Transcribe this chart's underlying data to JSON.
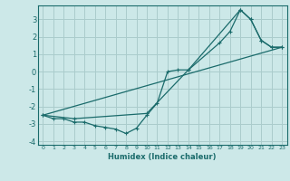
{
  "xlabel": "Humidex (Indice chaleur)",
  "background_color": "#cce8e8",
  "grid_color": "#aacccc",
  "line_color": "#1a6b6b",
  "xlim": [
    -0.5,
    23.5
  ],
  "ylim": [
    -4.2,
    3.8
  ],
  "yticks": [
    -4,
    -3,
    -2,
    -1,
    0,
    1,
    2,
    3
  ],
  "xticks": [
    0,
    1,
    2,
    3,
    4,
    5,
    6,
    7,
    8,
    9,
    10,
    11,
    12,
    13,
    14,
    15,
    16,
    17,
    18,
    19,
    20,
    21,
    22,
    23
  ],
  "line1_x": [
    0,
    1,
    2,
    3,
    4,
    5,
    6,
    7,
    8,
    9,
    10,
    11,
    12,
    13,
    14,
    19,
    20,
    21,
    22,
    23
  ],
  "line1_y": [
    -2.5,
    -2.7,
    -2.7,
    -2.9,
    -2.9,
    -3.1,
    -3.2,
    -3.3,
    -3.55,
    -3.25,
    -2.5,
    -1.8,
    0.0,
    0.1,
    0.1,
    3.55,
    3.0,
    1.8,
    1.4,
    1.4
  ],
  "line2_x": [
    0,
    3,
    10,
    14,
    17,
    18,
    19,
    20,
    21,
    22,
    23
  ],
  "line2_y": [
    -2.5,
    -2.7,
    -2.4,
    0.1,
    1.65,
    2.3,
    3.55,
    3.0,
    1.8,
    1.4,
    1.4
  ],
  "line3_x": [
    0,
    23
  ],
  "line3_y": [
    -2.5,
    1.4
  ]
}
